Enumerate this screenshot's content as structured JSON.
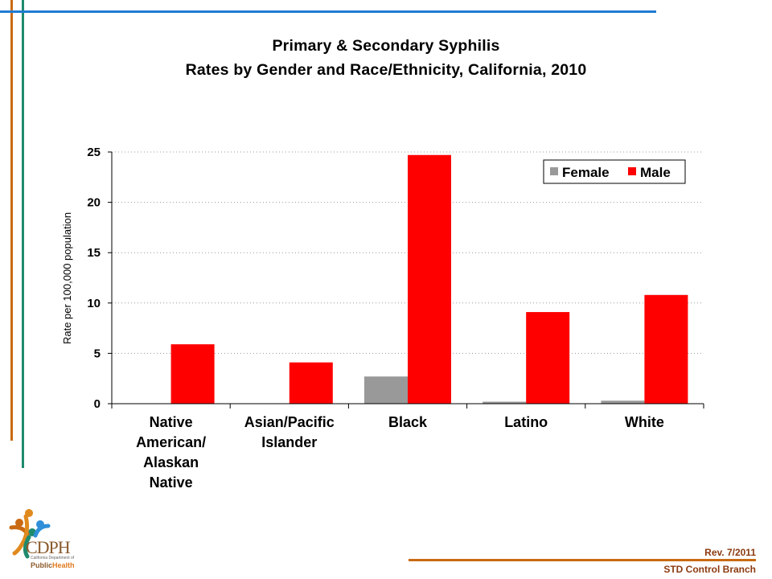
{
  "slide": {
    "title_line1": "Primary & Secondary Syphilis",
    "title_line2": "Rates by Gender and Race/Ethnicity, California, 2010",
    "revision": "Rev. 7/2011",
    "branch": "STD Control Branch"
  },
  "logo": {
    "abbr": "CDPH",
    "dept": "California Department of",
    "name_part1": "Public",
    "name_part2": "Health"
  },
  "colors": {
    "blue_line": "#1f7bd1",
    "orange_line": "#c96a12",
    "green_line": "#1e8a6e",
    "female": "#999999",
    "male": "#ff0000",
    "footer": "#8b3a0f"
  },
  "chart_data": {
    "type": "bar",
    "title": "",
    "ylabel": "Rate per 100,000 population",
    "xlabel": "",
    "ylim": [
      0,
      25
    ],
    "yticks": [
      "0",
      "5",
      "10",
      "15",
      "20",
      "25"
    ],
    "categories": [
      [
        "Native",
        "American/",
        "Alaskan",
        "Native"
      ],
      [
        "Asian/Pacific",
        "Islander"
      ],
      [
        "Black"
      ],
      [
        "Latino"
      ],
      [
        "White"
      ]
    ],
    "series": [
      {
        "name": "Female",
        "color": "#999999",
        "values": [
          0,
          0,
          2.7,
          0.2,
          0.3
        ]
      },
      {
        "name": "Male",
        "color": "#ff0000",
        "values": [
          5.9,
          4.1,
          24.7,
          9.1,
          10.8
        ]
      }
    ],
    "grid": "horizontal dotted",
    "legend_position": "top-right"
  }
}
